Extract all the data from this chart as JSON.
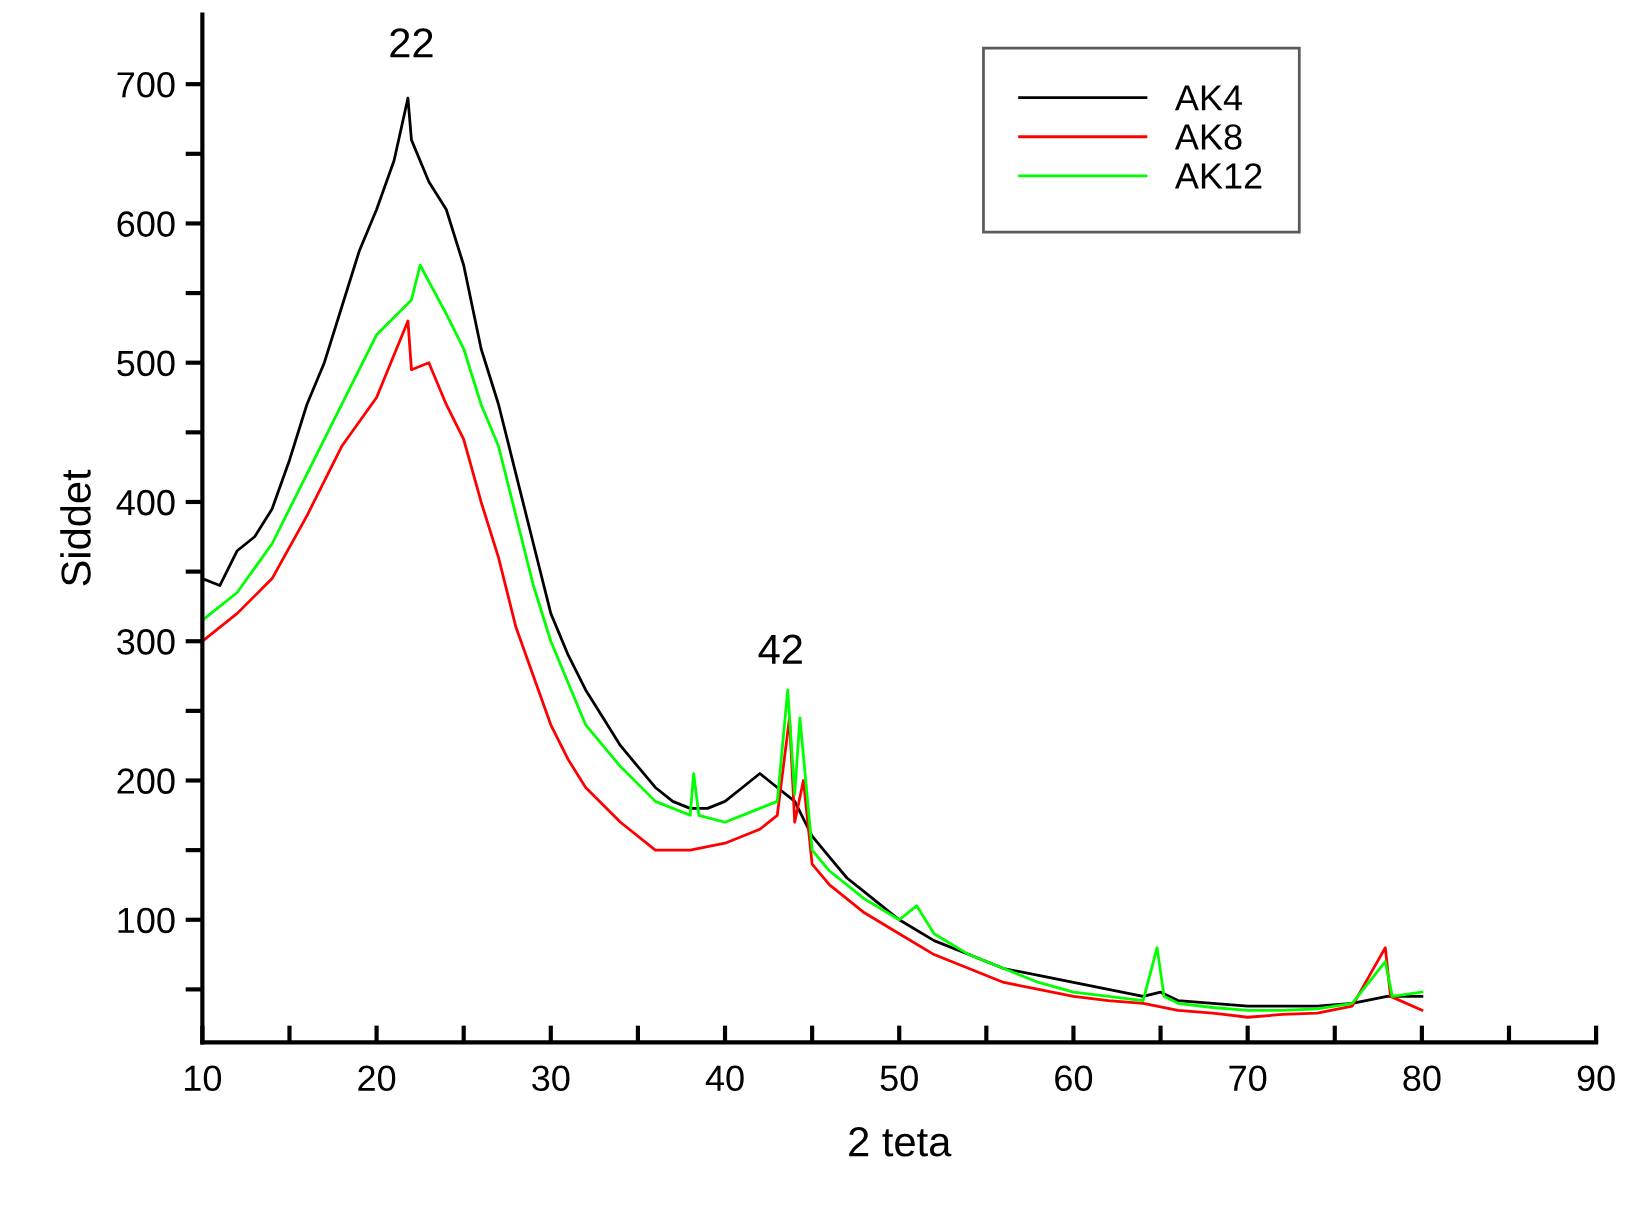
{
  "chart_data": {
    "type": "line",
    "xlabel": "2 teta",
    "ylabel": "Siddet",
    "xlim": [
      10,
      90
    ],
    "ylim": [
      12,
      750
    ],
    "xticks": [
      10,
      {
        "value": 15,
        "label": null
      },
      20,
      {
        "value": 25,
        "label": null
      },
      30,
      {
        "value": 35,
        "label": null
      },
      40,
      {
        "value": 45,
        "label": null
      },
      50,
      {
        "value": 55,
        "label": null
      },
      60,
      {
        "value": 65,
        "label": null
      },
      70,
      {
        "value": 75,
        "label": null
      },
      80,
      {
        "value": 85,
        "label": null
      },
      90
    ],
    "yticks": [
      {
        "value": 50,
        "label": null
      },
      100,
      {
        "value": 150,
        "label": null
      },
      200,
      {
        "value": 250,
        "label": null
      },
      300,
      {
        "value": 350,
        "label": null
      },
      400,
      {
        "value": 450,
        "label": null
      },
      500,
      {
        "value": 550,
        "label": null
      },
      600,
      {
        "value": 650,
        "label": null
      },
      700
    ],
    "grid": false,
    "legend": "top right",
    "marker": "none",
    "line_style": "solid",
    "annotations": [
      "22",
      "42"
    ],
    "series": [
      {
        "name": "AK4",
        "color": "#000000",
        "x": [
          10,
          11,
          12,
          13,
          14,
          15,
          16,
          17,
          18,
          19,
          20,
          21,
          21.8,
          22,
          23,
          24,
          25,
          26,
          27,
          28,
          29,
          30,
          31,
          32,
          33,
          34,
          35,
          36,
          37,
          38,
          39,
          40,
          41,
          42,
          43,
          44,
          45,
          46,
          47,
          48,
          49,
          50,
          52,
          54,
          56,
          58,
          60,
          62,
          64,
          65,
          66,
          68,
          70,
          72,
          74,
          76,
          78,
          80
        ],
        "values": [
          345,
          340,
          365,
          375,
          395,
          430,
          470,
          500,
          540,
          580,
          610,
          645,
          690,
          660,
          630,
          610,
          570,
          510,
          470,
          420,
          370,
          320,
          290,
          265,
          245,
          225,
          210,
          195,
          185,
          180,
          180,
          185,
          195,
          205,
          195,
          185,
          160,
          145,
          130,
          120,
          110,
          100,
          85,
          75,
          65,
          60,
          55,
          50,
          45,
          48,
          42,
          40,
          38,
          38,
          38,
          40,
          45,
          45
        ]
      },
      {
        "name": "AK8",
        "color": "#ff0000",
        "x": [
          10,
          12,
          14,
          16,
          18,
          20,
          21.8,
          22,
          23,
          24,
          25,
          26,
          27,
          28,
          29,
          30,
          31,
          32,
          34,
          36,
          38,
          40,
          42,
          43,
          43.7,
          44,
          44.5,
          45,
          46,
          48,
          50,
          52,
          54,
          56,
          58,
          60,
          62,
          64,
          66,
          68,
          70,
          72,
          74,
          76,
          77.9,
          78.2,
          80
        ],
        "values": [
          300,
          320,
          345,
          390,
          440,
          475,
          530,
          495,
          500,
          470,
          445,
          400,
          360,
          310,
          275,
          240,
          215,
          195,
          170,
          150,
          150,
          155,
          165,
          175,
          245,
          170,
          200,
          140,
          125,
          105,
          90,
          75,
          65,
          55,
          50,
          45,
          42,
          40,
          35,
          33,
          30,
          32,
          33,
          38,
          80,
          45,
          35
        ]
      },
      {
        "name": "AK12",
        "color": "#00ff00",
        "x": [
          10,
          12,
          14,
          16,
          18,
          20,
          22,
          22.5,
          24,
          25,
          26,
          27,
          28,
          29,
          30,
          31,
          32,
          34,
          36,
          38,
          38.2,
          38.5,
          40,
          42,
          43,
          43.6,
          44,
          44.3,
          45,
          46,
          48,
          50,
          51,
          52,
          54,
          56,
          58,
          60,
          62,
          64,
          64.8,
          65.2,
          66,
          68,
          70,
          72,
          74,
          76,
          77.9,
          78.3,
          80
        ],
        "values": [
          315,
          335,
          370,
          420,
          470,
          520,
          545,
          570,
          535,
          510,
          470,
          440,
          390,
          340,
          300,
          270,
          240,
          210,
          185,
          175,
          205,
          175,
          170,
          180,
          185,
          265,
          190,
          245,
          150,
          135,
          115,
          100,
          110,
          90,
          75,
          65,
          55,
          48,
          45,
          42,
          80,
          45,
          40,
          37,
          35,
          35,
          36,
          40,
          70,
          45,
          48
        ]
      }
    ]
  }
}
